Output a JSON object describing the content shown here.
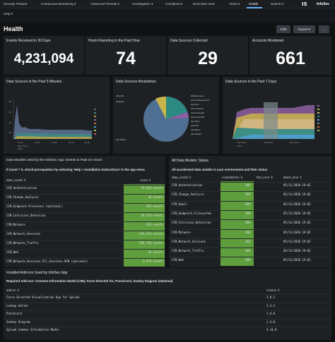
{
  "nav": {
    "items": [
      "Security Posture",
      "Continuous Monitoring ▾",
      "Advanced Threats ▾",
      "Investigation ▾",
      "Compliance",
      "Executive View",
      "Alerts ▾",
      "Health",
      "Search ▾"
    ],
    "active_index": 7,
    "logo_mark": "IS",
    "logo_text": "InfoSec"
  },
  "subnav": {
    "help": "Help ▾"
  },
  "page": {
    "title": "Health"
  },
  "toolbar": {
    "edit": "Edit",
    "export": "Export ▾",
    "more": "..."
  },
  "kpis": [
    {
      "title": "Events Received in 30 Days",
      "value": "4,231,094"
    },
    {
      "title": "Hosts Reporting in the Past Hour",
      "value": "74"
    },
    {
      "title": "Data Sources Collected",
      "value": "29"
    },
    {
      "title": "Accounts Monitored",
      "value": "661"
    }
  ],
  "panels": {
    "sources_5min": {
      "title": "Data Sources in the Past 5 Minutes",
      "x_ticks": [
        "12:44",
        "12:45",
        "12:46",
        "12:47",
        "12:48"
      ],
      "x_sub": "Wed Sep 9\n2020",
      "y_ticks": [
        "80",
        "60",
        "40",
        "20",
        "0"
      ],
      "legend": [
        "ftp_sig",
        "sa_ab",
        "sa_sig",
        "sa_ath",
        "sa_ab",
        "sa_ath",
        "sa_av",
        "sa_ath"
      ]
    },
    "breakdown": {
      "title": "Data Sources Breakdown",
      "labels_left": [
        "other (8)",
        "panipaid",
        "pandtraffic"
      ],
      "labels_right": [
        "WinEventLog",
        "wineventlog:sysmon",
        "openvpn",
        "cisco:asa:cef",
        "cisco:asa:auth",
        "cisco:asa:auth",
        "pan:lagrn",
        "ssh:auth",
        "panthreat",
        "pan:theatre"
      ]
    },
    "sources_7day": {
      "title": "Data Sources in the Past 7 Days",
      "x_ticks": [
        "Thu Sep 3\n2020",
        "Sat Sep 5",
        "Mon Sep 7"
      ],
      "legend": [
        "ftu_sec",
        "ftp_auth",
        "sa_ath",
        "sa_ab",
        "sa_ab",
        "sa_ab",
        "sa_sig",
        "sa_av",
        "sa_ath",
        "sa_ath",
        "sa_ab"
      ]
    }
  },
  "datamodels_24h": {
    "title": "Data Models Used by the InfoSec App: Events in Past 24 Hours",
    "note": "If count = 0, check prerequisites by selecting 'Help > Installation Instructions' in the app menu",
    "columns": [
      "data_model ⇕",
      "count ⇕"
    ],
    "rows": [
      [
        "CIM_Authentication",
        "70,064 events"
      ],
      [
        "CIM_Change_Analysis",
        "38 events"
      ],
      [
        "CIM_Endpoint.Processes (optional)",
        "392 events"
      ],
      [
        "CIM_Intrusion_Detection",
        "20,570 events"
      ],
      [
        "CIM_Malware",
        "393 events"
      ],
      [
        "CIM_Network_Sessions",
        "629,454 events"
      ],
      [
        "CIM_Network_Traffic",
        "634,148 events"
      ],
      [
        "CIM_Web",
        "36 events"
      ],
      [
        "CIM_Network_Sessions.All_Sessions.VPN (optional)",
        "3,979 events"
      ]
    ]
  },
  "datamodels_status": {
    "title": "All Data Models: Status",
    "note": "All accelerated data models in your environment and their status",
    "columns": [
      "data_model ⇕",
      "complete(%) ⇕",
      "last_error ⇕",
      "latest_time ⇕"
    ],
    "rows": [
      [
        "CIM_Authentication",
        "100",
        "",
        "05/11/2020 19:02"
      ],
      [
        "CIM_Change_Analysis",
        "100",
        "",
        "05/11/2020 19:02"
      ],
      [
        "CIM_Email",
        "100",
        "",
        "05/11/2020 19:02"
      ],
      [
        "CIM_Endpoint.Filesystem",
        "100",
        "",
        "05/11/2020 19:02"
      ],
      [
        "CIM_Intrusion_Detection",
        "100",
        "",
        "05/11/2020 19:02"
      ],
      [
        "CIM_Malware",
        "100",
        "",
        "05/11/2020 19:02"
      ],
      [
        "CIM_Network_Sessions",
        "100",
        "",
        "05/11/2020 19:02"
      ],
      [
        "CIM_Network_Traffic",
        "100",
        "",
        "05/11/2020 19:02"
      ],
      [
        "CIM_Web",
        "100",
        "",
        "05/11/2020 19:02"
      ]
    ]
  },
  "addons": {
    "title": "Installed Add-ons Used by InfoSec App",
    "note": "Required Add-ons: Common Information Model (CIM), Force Directed Viz, Punchcard, Sankey Diagram (Optional)",
    "columns": [
      "add-on ⇕",
      "version ⇕"
    ],
    "rows": [
      [
        "Force Directed Visualization App for Splunk",
        "3.0.1"
      ],
      [
        "Lookup Editor",
        "3.3.3"
      ],
      [
        "Punchcard",
        "1.4.0"
      ],
      [
        "Sankey Diagram",
        "1.4.0"
      ],
      [
        "Splunk Common Information Model",
        "4.14.0"
      ]
    ]
  },
  "colors": {
    "green": "#5e9e3c",
    "panel": "#1e2124",
    "accent": "#6ab4ff"
  }
}
